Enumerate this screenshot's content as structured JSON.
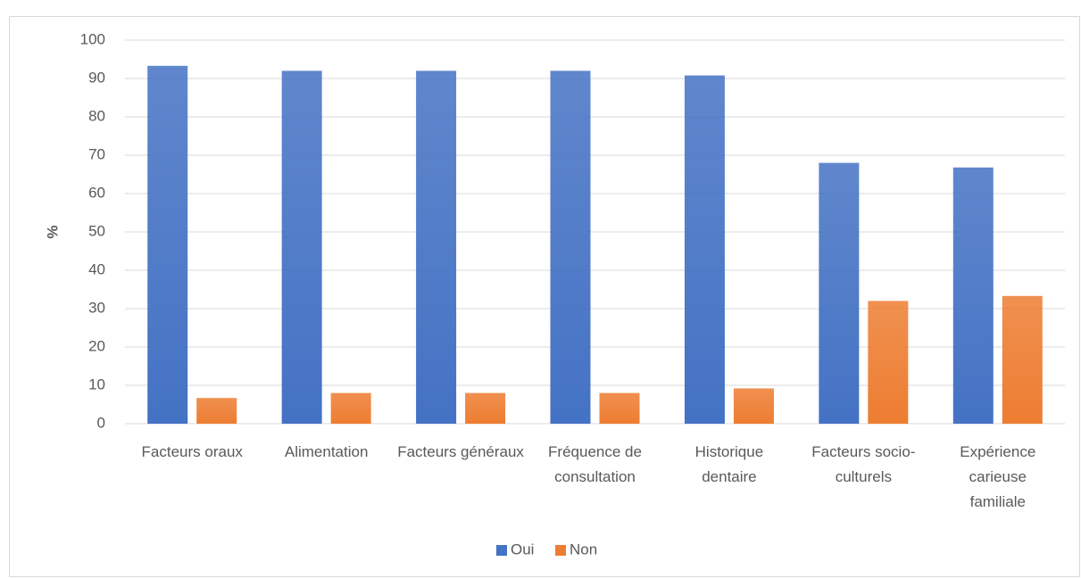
{
  "chart_data": {
    "type": "bar",
    "y_label": "%",
    "categories": [
      "Facteurs oraux",
      "Alimentation",
      "Facteurs généraux",
      "Fréquence de consultation",
      "Historique dentaire",
      "Facteurs socio-culturels",
      "Expérience carieuse familiale"
    ],
    "series": [
      {
        "name": "Oui",
        "color": "#4472c4",
        "values": [
          93.3,
          92,
          92,
          92,
          90.8,
          68,
          66.8
        ]
      },
      {
        "name": "Non",
        "color": "#ed7d31",
        "values": [
          6.7,
          8,
          8,
          8,
          9.2,
          32,
          33.3
        ]
      }
    ],
    "ylim": [
      0,
      100
    ],
    "yticks": [
      0,
      10,
      20,
      30,
      40,
      50,
      60,
      70,
      80,
      90,
      100
    ],
    "grid": true,
    "legend": "bottom"
  }
}
